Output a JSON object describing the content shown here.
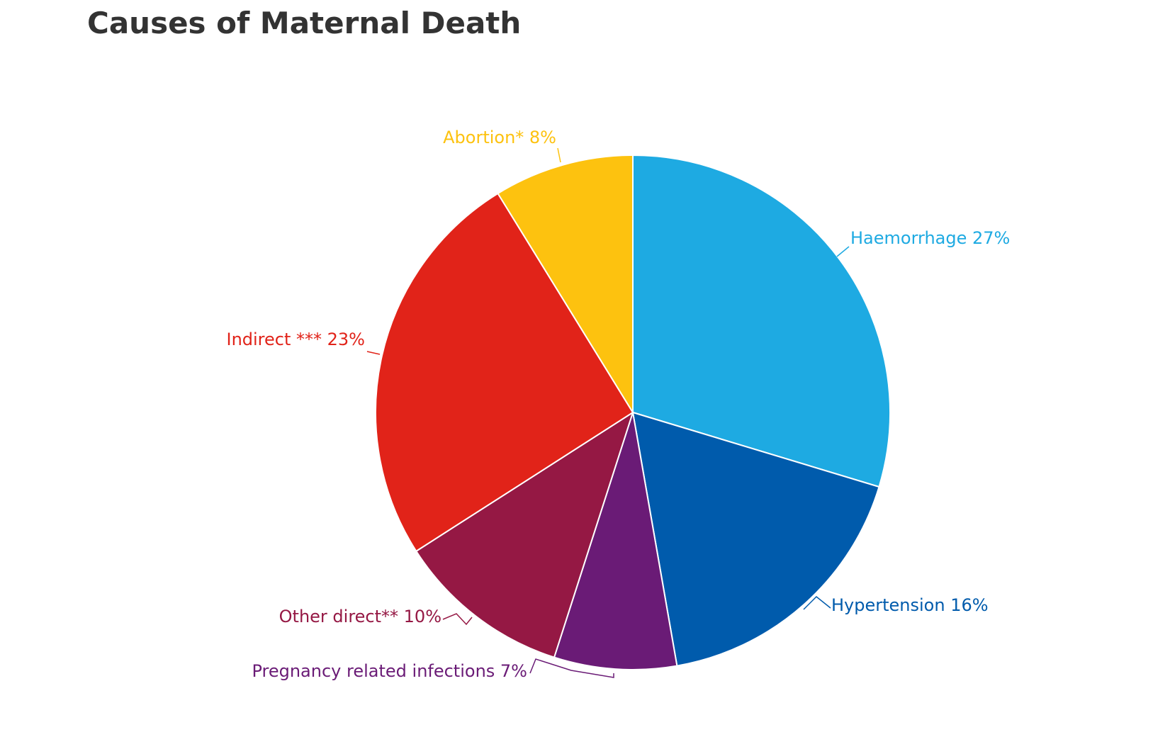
{
  "chart_data": {
    "type": "pie",
    "title": "Causes of Maternal Death",
    "start_angle_deg": 0,
    "direction": "clockwise",
    "slices": [
      {
        "label": "Haemorrhage 27%",
        "name": "Haemorrhage",
        "value": 27,
        "color": "#1EAAE2"
      },
      {
        "label": "Hypertension 16%",
        "name": "Hypertension",
        "value": 16,
        "color": "#005BAC"
      },
      {
        "label": "Pregnancy related infections 7%",
        "name": "Pregnancy related infections",
        "value": 7,
        "color": "#6A1B76"
      },
      {
        "label": "Other direct** 10%",
        "name": "Other direct**",
        "value": 10,
        "color": "#951844"
      },
      {
        "label": "Indirect *** 23%",
        "name": "Indirect ***",
        "value": 23,
        "color": "#E12319"
      },
      {
        "label": "Abortion* 8%",
        "name": "Abortion*",
        "value": 8,
        "color": "#FDC20F"
      }
    ]
  }
}
